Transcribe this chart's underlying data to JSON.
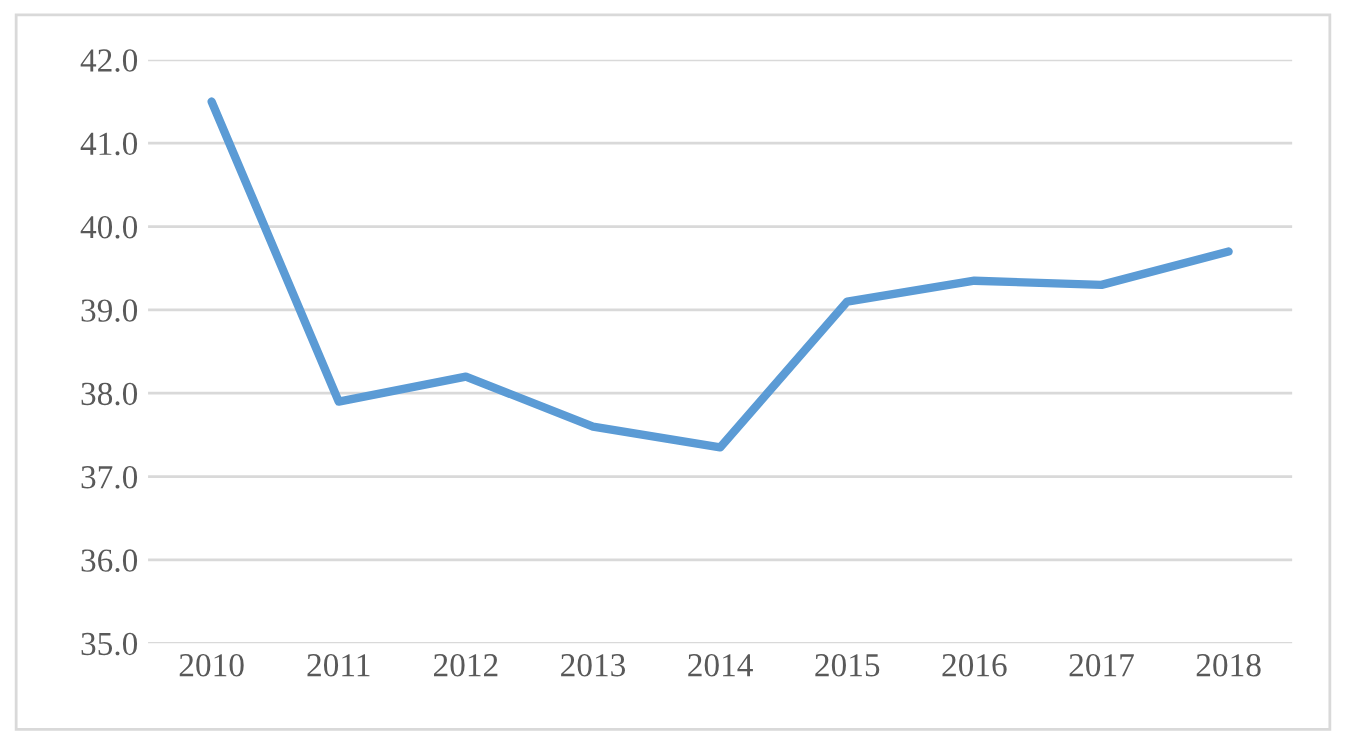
{
  "chart_data": {
    "type": "line",
    "categories": [
      "2010",
      "2011",
      "2012",
      "2013",
      "2014",
      "2015",
      "2016",
      "2017",
      "2018"
    ],
    "series": [
      {
        "color": "#5b9bd5",
        "values": [
          41.5,
          37.9,
          38.2,
          37.6,
          37.35,
          39.1,
          39.35,
          39.3,
          39.7
        ]
      }
    ],
    "ylim": [
      35,
      42
    ],
    "yticks": [
      {
        "value": 35,
        "label": "35.0"
      },
      {
        "value": 36,
        "label": "36.0"
      },
      {
        "value": 37,
        "label": "37.0"
      },
      {
        "value": 38,
        "label": "38.0"
      },
      {
        "value": 39,
        "label": "39.0"
      },
      {
        "value": 40,
        "label": "40.0"
      },
      {
        "value": 41,
        "label": "41.0"
      },
      {
        "value": 42,
        "label": "42.0"
      }
    ],
    "grid": "y",
    "marker": "none",
    "line_style": "solid",
    "legend": false
  }
}
